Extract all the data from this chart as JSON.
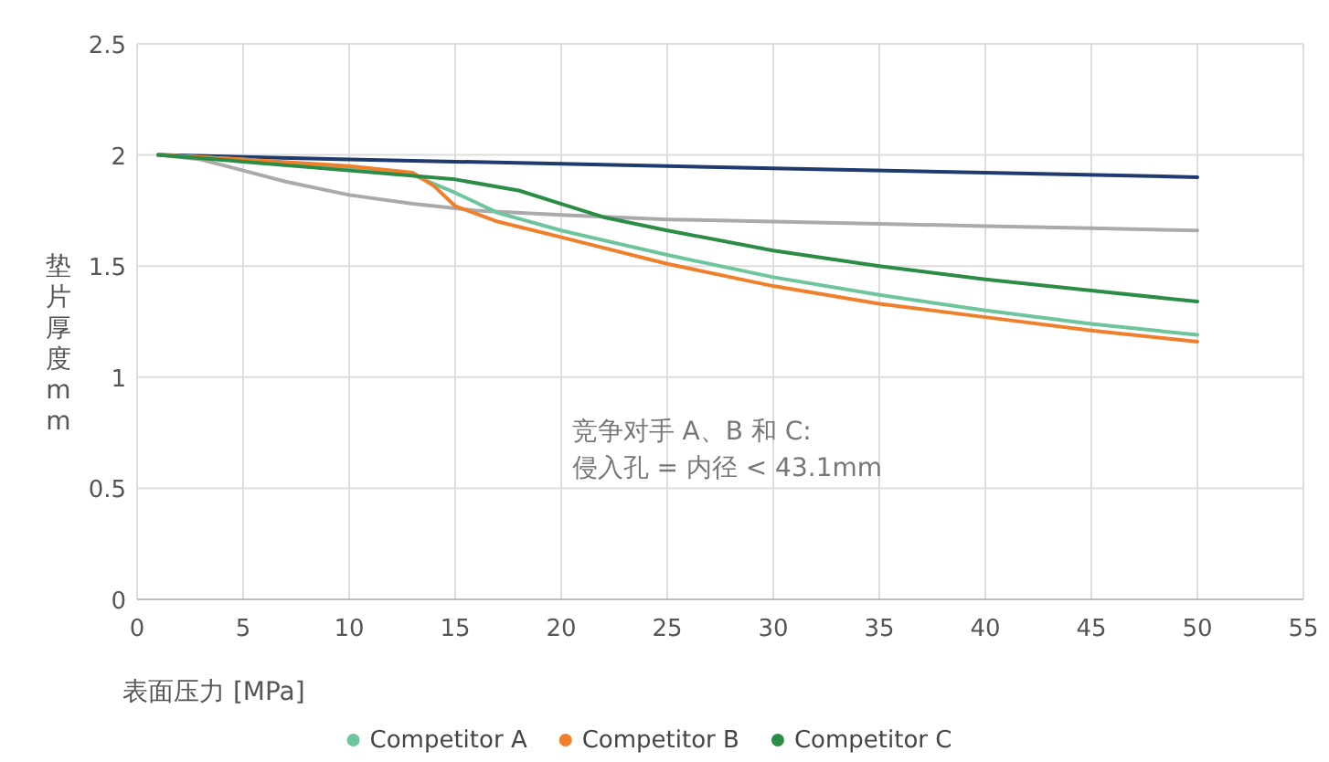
{
  "chart_data": {
    "type": "line",
    "xlabel": "表面压力 [MPa]",
    "ylabel": "垫片厚度mm",
    "annotations": [
      "竞争对手 A、B 和 C:\n侵入孔 = 内径 < 43.1mm"
    ],
    "xlim": [
      0,
      55
    ],
    "xticks": [
      0,
      5,
      10,
      15,
      20,
      25,
      30,
      35,
      40,
      45,
      50,
      55
    ],
    "ylim": [
      0,
      2.5
    ],
    "yticks": [
      0,
      0.5,
      1,
      1.5,
      2,
      2.5
    ],
    "grid": true,
    "legend": "bottom",
    "marker": "none",
    "line_style": "solid",
    "series": [
      {
        "color": "#aaaaaa",
        "x": [
          1,
          3,
          5,
          7,
          10,
          13,
          16,
          20,
          25,
          30,
          35,
          40,
          45,
          50
        ],
        "values": [
          2.0,
          1.98,
          1.93,
          1.88,
          1.82,
          1.78,
          1.75,
          1.73,
          1.71,
          1.7,
          1.69,
          1.68,
          1.67,
          1.66
        ]
      },
      {
        "color": "#1f3a6e",
        "x": [
          1,
          10,
          20,
          30,
          40,
          50
        ],
        "values": [
          2.0,
          1.98,
          1.96,
          1.94,
          1.92,
          1.9
        ]
      },
      {
        "name": "Competitor A",
        "color": "#6cc59b",
        "x": [
          1,
          5,
          10,
          13,
          15,
          17,
          20,
          25,
          30,
          35,
          40,
          45,
          50
        ],
        "values": [
          2.0,
          1.98,
          1.94,
          1.91,
          1.83,
          1.74,
          1.66,
          1.55,
          1.45,
          1.37,
          1.3,
          1.24,
          1.19
        ]
      },
      {
        "name": "Competitor B",
        "color": "#f07f2b",
        "x": [
          1,
          5,
          10,
          13,
          14,
          15,
          17,
          20,
          25,
          30,
          35,
          40,
          45,
          50
        ],
        "values": [
          2.0,
          1.98,
          1.95,
          1.92,
          1.86,
          1.77,
          1.7,
          1.63,
          1.51,
          1.41,
          1.33,
          1.27,
          1.21,
          1.16
        ]
      },
      {
        "name": "Competitor C",
        "color": "#2a8c45",
        "x": [
          1,
          5,
          10,
          15,
          18,
          20,
          22,
          25,
          30,
          35,
          40,
          45,
          50
        ],
        "values": [
          2.0,
          1.97,
          1.93,
          1.89,
          1.84,
          1.78,
          1.72,
          1.66,
          1.57,
          1.5,
          1.44,
          1.39,
          1.34
        ]
      }
    ]
  }
}
